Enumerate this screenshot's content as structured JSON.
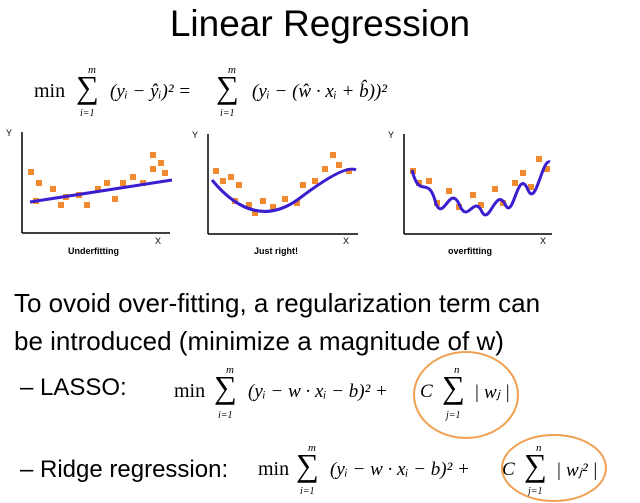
{
  "slide": {
    "title": "Linear Regression",
    "objective": {
      "min": "min",
      "sum_top": "m",
      "sum_bottom": "i=1",
      "lhs": "(yᵢ − ŷᵢ)² =",
      "rhs": "(yᵢ − (ŵ · xᵢ + b̂))²"
    },
    "panels": [
      {
        "caption": "Underfitting",
        "x_label": "X",
        "y_label": "Y"
      },
      {
        "caption": "Just right!",
        "x_label": "X",
        "y_label": "Y"
      },
      {
        "caption": "overfitting",
        "x_label": "X",
        "y_label": "Y"
      }
    ],
    "text_line1": "To ovoid over-fitting, a regularization term can",
    "text_line2": "be introduced (minimize a magnitude of w)",
    "lasso": {
      "label": "– LASSO:",
      "min": "min",
      "sum_top": "m",
      "sum_bottom": "i=1",
      "expr": "(yᵢ − w · xᵢ − b)² +",
      "c": "C",
      "reg_sum_top": "n",
      "reg_sum_bottom": "j=1",
      "reg_term": "| wⱼ |"
    },
    "ridge": {
      "label": "– Ridge regression:",
      "min": "min",
      "sum_top": "m",
      "sum_bottom": "i=1",
      "expr": "(yᵢ − w · xᵢ − b)² +",
      "c": "C",
      "reg_sum_top": "n",
      "reg_sum_bottom": "j=1",
      "reg_term": "| wⱼ² |"
    },
    "colors": {
      "points": "#f08a2c",
      "fit_line": "#3a1ed0",
      "highlight_circle": "#f0a050",
      "axis": "#000000"
    }
  }
}
